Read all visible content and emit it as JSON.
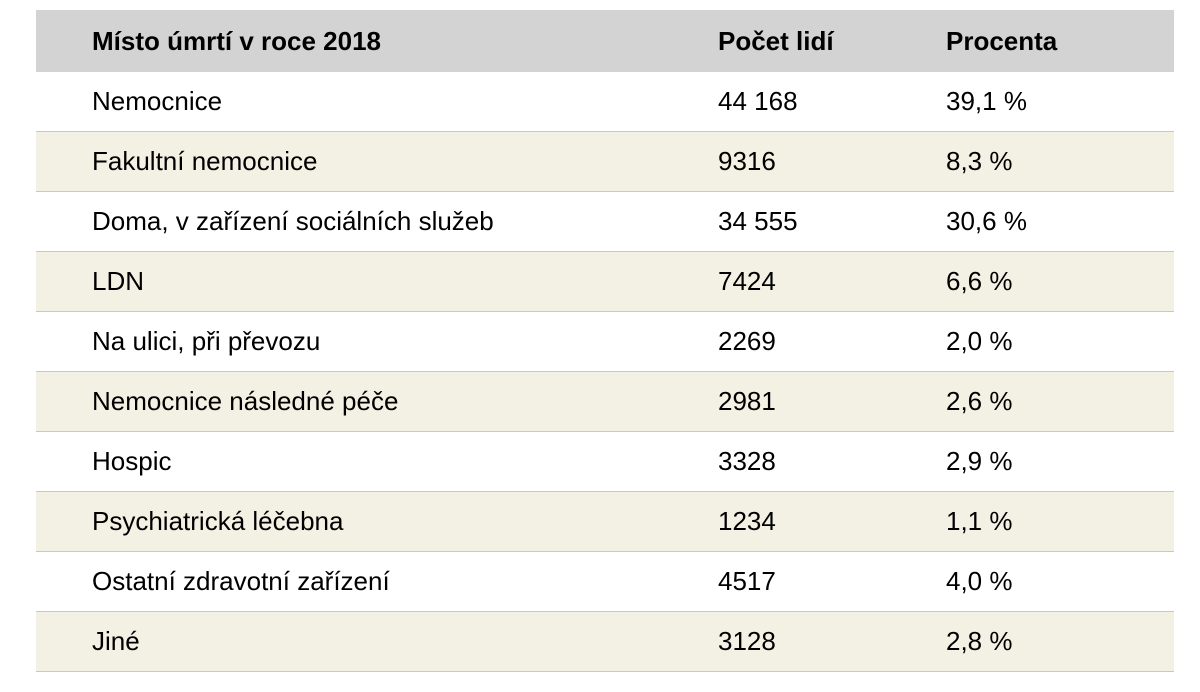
{
  "table": {
    "headers": {
      "place": "Místo úmrtí v roce 2018",
      "count": "Počet lidí",
      "percent": "Procenta"
    },
    "rows": [
      {
        "place": "Nemocnice",
        "count": "44 168",
        "percent": "39,1 %"
      },
      {
        "place": "Fakultní nemocnice",
        "count": "9316",
        "percent": "8,3 %"
      },
      {
        "place": "Doma, v zařízení sociálních služeb",
        "count": "34 555",
        "percent": "30,6 %"
      },
      {
        "place": "LDN",
        "count": "7424",
        "percent": "6,6 %"
      },
      {
        "place": "Na ulici, při převozu",
        "count": "2269",
        "percent": "2,0 %"
      },
      {
        "place": "Nemocnice následné péče",
        "count": "2981",
        "percent": "2,6 %"
      },
      {
        "place": "Hospic",
        "count": "3328",
        "percent": "2,9 %"
      },
      {
        "place": "Psychiatrická léčebna",
        "count": "1234",
        "percent": "1,1 %"
      },
      {
        "place": "Ostatní zdravotní zařízení",
        "count": "4517",
        "percent": "4,0 %"
      },
      {
        "place": "Jiné",
        "count": "3128",
        "percent": "2,8 %"
      }
    ]
  },
  "colors": {
    "header_bg": "#d3d3d3",
    "alt_row_bg": "#f3f1e4",
    "row_bg": "#ffffff",
    "divider": "#c8c8c8"
  }
}
